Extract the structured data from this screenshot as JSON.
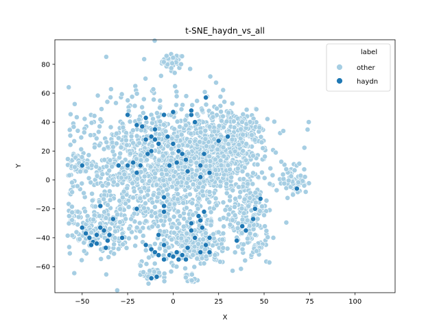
{
  "chart_data": {
    "type": "scatter",
    "title": "t-SNE_haydn_vs_all",
    "xlabel": "X",
    "ylabel": "Y",
    "xlim": [
      -65,
      122
    ],
    "ylim": [
      -78,
      97
    ],
    "xticks": [
      -50,
      -25,
      0,
      25,
      50,
      75,
      100
    ],
    "yticks": [
      -60,
      -40,
      -20,
      0,
      20,
      40,
      60,
      80
    ],
    "grid": false,
    "legend": {
      "title": "label",
      "placement": "top-right",
      "entries": [
        "other",
        "haydn"
      ]
    },
    "colors": {
      "other": "#a6cee3",
      "haydn": "#1f78b4",
      "edge": "#ffffff"
    },
    "series": [
      {
        "name": "other",
        "clusters": [
          {
            "cx": 0,
            "cy": 82,
            "sx": 3,
            "sy": 2.5,
            "n": 45
          },
          {
            "cx": -5,
            "cy": 5,
            "sx": 25,
            "sy": 24,
            "n": 1300
          },
          {
            "cx": 25,
            "cy": 18,
            "sx": 12,
            "sy": 14,
            "n": 380
          },
          {
            "cx": 35,
            "cy": 35,
            "sx": 8,
            "sy": 8,
            "n": 120
          },
          {
            "cx": 42,
            "cy": -28,
            "sx": 6,
            "sy": 12,
            "n": 140
          },
          {
            "cx": -40,
            "cy": -35,
            "sx": 8,
            "sy": 8,
            "n": 150
          },
          {
            "cx": 10,
            "cy": -45,
            "sx": 10,
            "sy": 7,
            "n": 180
          },
          {
            "cx": -12,
            "cy": -65,
            "sx": 3,
            "sy": 3,
            "n": 35
          },
          {
            "cx": 10,
            "cy": -68,
            "sx": 2,
            "sy": 2,
            "n": 12
          },
          {
            "cx": 67,
            "cy": 0,
            "sx": 3.5,
            "sy": 5,
            "n": 70
          },
          {
            "cx": 47,
            "cy": -47,
            "sx": 2,
            "sy": 1.5,
            "n": 12
          },
          {
            "cx": -50,
            "cy": 10,
            "sx": 3,
            "sy": 3,
            "n": 30
          },
          {
            "cx": -54,
            "cy": -25,
            "sx": 3,
            "sy": 3,
            "n": 15
          }
        ]
      },
      {
        "name": "haydn",
        "points": [
          [
            -50,
            10
          ],
          [
            -40,
            -18
          ],
          [
            -50,
            -33
          ],
          [
            -48,
            -37
          ],
          [
            -46,
            -40
          ],
          [
            -44,
            -43
          ],
          [
            -45,
            -45
          ],
          [
            -42,
            -38
          ],
          [
            -38,
            -35
          ],
          [
            -36,
            -42
          ],
          [
            -37,
            -47
          ],
          [
            -40,
            -33
          ],
          [
            -42,
            -44
          ],
          [
            -30,
            10
          ],
          [
            -28,
            -40
          ],
          [
            -25,
            45
          ],
          [
            -20,
            38
          ],
          [
            -17,
            37
          ],
          [
            -15,
            43
          ],
          [
            -12,
            30
          ],
          [
            -10,
            35
          ],
          [
            -15,
            28
          ],
          [
            -8,
            25
          ],
          [
            -10,
            28
          ],
          [
            -12,
            20
          ],
          [
            -14,
            18
          ],
          [
            -18,
            10
          ],
          [
            -20,
            5
          ],
          [
            -22,
            12
          ],
          [
            -25,
            10
          ],
          [
            -5,
            45
          ],
          [
            0,
            47
          ],
          [
            -3,
            30
          ],
          [
            0,
            25
          ],
          [
            3,
            20
          ],
          [
            5,
            18
          ],
          [
            7,
            14
          ],
          [
            2,
            12
          ],
          [
            -2,
            10
          ],
          [
            8,
            6
          ],
          [
            10,
            45
          ],
          [
            10,
            48
          ],
          [
            12,
            40
          ],
          [
            15,
            10
          ],
          [
            15,
            2
          ],
          [
            17,
            18
          ],
          [
            18,
            57
          ],
          [
            20,
            5
          ],
          [
            25,
            27
          ],
          [
            30,
            30
          ],
          [
            -20,
            -20
          ],
          [
            -5,
            -12
          ],
          [
            -5,
            -18
          ],
          [
            -5,
            -22
          ],
          [
            -8,
            -38
          ],
          [
            -5,
            -45
          ],
          [
            -2,
            -52
          ],
          [
            0,
            -53
          ],
          [
            2,
            -50
          ],
          [
            3,
            -55
          ],
          [
            5,
            -52
          ],
          [
            7,
            -55
          ],
          [
            8,
            -47
          ],
          [
            10,
            -35
          ],
          [
            10,
            -30
          ],
          [
            12,
            -40
          ],
          [
            14,
            -25
          ],
          [
            15,
            -28
          ],
          [
            16,
            -33
          ],
          [
            18,
            -45
          ],
          [
            20,
            -40
          ],
          [
            20,
            -50
          ],
          [
            15,
            -50
          ],
          [
            17,
            -22
          ],
          [
            -12,
            -48
          ],
          [
            -10,
            -50
          ],
          [
            -15,
            -45
          ],
          [
            -8,
            -52
          ],
          [
            -12,
            -68
          ],
          [
            -9,
            -67
          ],
          [
            -5,
            -55
          ],
          [
            38,
            -32
          ],
          [
            40,
            -35
          ],
          [
            45,
            -20
          ],
          [
            48,
            -13
          ],
          [
            44,
            -27
          ],
          [
            35,
            -42
          ],
          [
            68,
            -6
          ],
          [
            -35,
            -38
          ],
          [
            -33,
            -27
          ]
        ]
      }
    ]
  }
}
